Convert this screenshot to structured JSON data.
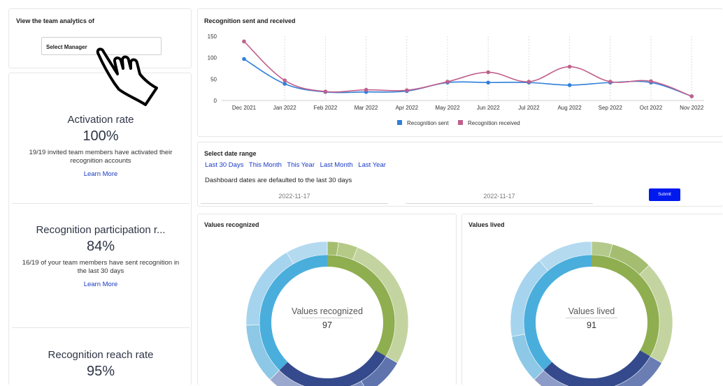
{
  "manager_selector": {
    "title": "View the team analytics of",
    "select_value": "Select Manager"
  },
  "metrics": [
    {
      "title": "Activation rate",
      "value": "100%",
      "description": "19/19 invited team members have activated their recognition accounts",
      "link": "Learn More"
    },
    {
      "title": "Recognition participation r...",
      "value": "84%",
      "description": "16/19 of your team members have sent recognition in the last 30 days",
      "link": "Learn More"
    },
    {
      "title": "Recognition reach rate",
      "value": "95%"
    }
  ],
  "chart_data": {
    "type": "line",
    "title": "Recognition sent and received",
    "categories": [
      "Dec 2021",
      "Jan 2022",
      "Feb 2022",
      "Mar 2022",
      "Apr 2022",
      "May 2022",
      "Jun 2022",
      "Jul 2022",
      "Aug 2022",
      "Sep 2022",
      "Oct 2022",
      "Nov 2022"
    ],
    "series": [
      {
        "name": "Recognition sent",
        "color": "#2e7fd9",
        "values": [
          97,
          39,
          20,
          20,
          22,
          42,
          42,
          42,
          36,
          42,
          42,
          10
        ]
      },
      {
        "name": "Recognition received",
        "color": "#c0608c",
        "values": [
          138,
          47,
          21,
          25,
          24,
          44,
          66,
          44,
          79,
          44,
          45,
          10
        ]
      }
    ],
    "y_ticks": [
      "150",
      "100",
      "50",
      "0"
    ],
    "ylim": [
      0,
      150
    ],
    "legend_position": "bottom",
    "grid": "vertical dashed"
  },
  "date_range": {
    "title": "Select date range",
    "quick_ranges": [
      "Last 30 Days",
      "This Month",
      "This Year",
      "Last Month",
      "Last Year"
    ],
    "note": "Dashboard dates are defaulted to the last 30 days",
    "start_date": "2022-11-17",
    "end_date": "2022-11-17",
    "submit_label": "Submit"
  },
  "values_recognized": {
    "title": "Values recognized",
    "center_label": "Values recognized",
    "center_value": "97"
  },
  "values_lived": {
    "title": "Values lived",
    "center_label": "Values lived",
    "center_value": "91"
  },
  "colors": {
    "link": "#1a3bc4",
    "submit": "#0019ee",
    "donut_green": "#8fae4f",
    "donut_navy": "#344a8c",
    "donut_blue": "#4aaedc"
  }
}
